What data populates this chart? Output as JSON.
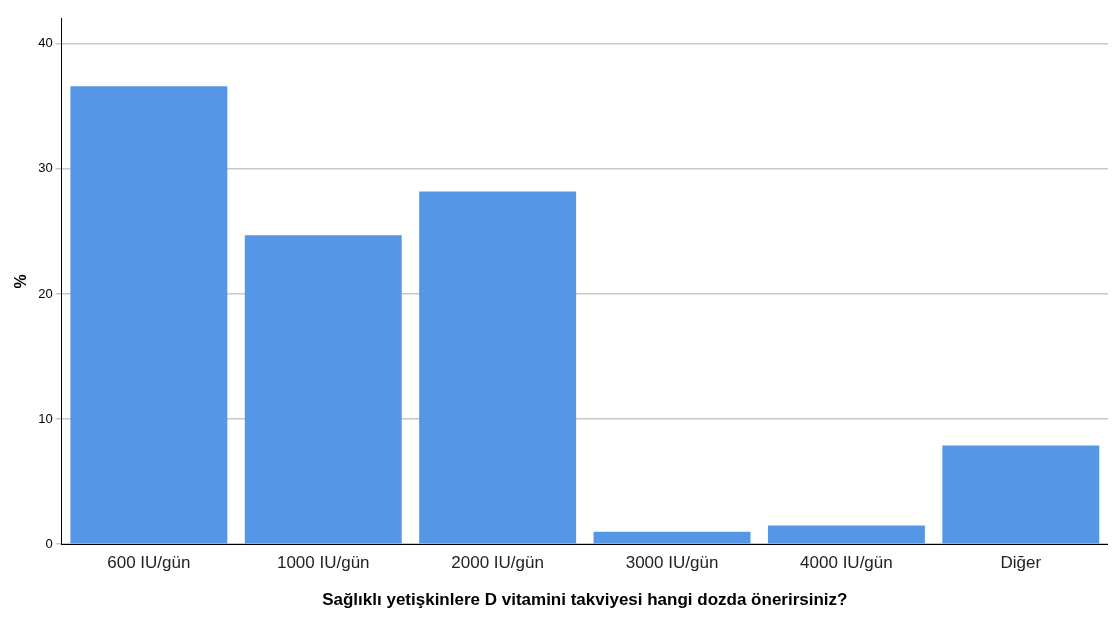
{
  "chart_data": {
    "type": "bar",
    "xlabel": "Sağlıklı yetişkinlere D vitamini takviyesi hangi dozda önerirsiniz?",
    "ylabel": "%",
    "categories": [
      "600 IU/gün",
      "1000 IU/gün",
      "2000 IU/gün",
      "3000 IU/gün",
      "4000 IU/gün",
      "Diğer"
    ],
    "values": [
      36.6,
      24.7,
      28.2,
      1.0,
      1.5,
      7.9
    ],
    "color": "#5596e6",
    "ylim": [
      0,
      42
    ],
    "yticks": [
      0,
      10,
      20,
      30,
      40
    ],
    "grid": "y",
    "legend": false
  }
}
